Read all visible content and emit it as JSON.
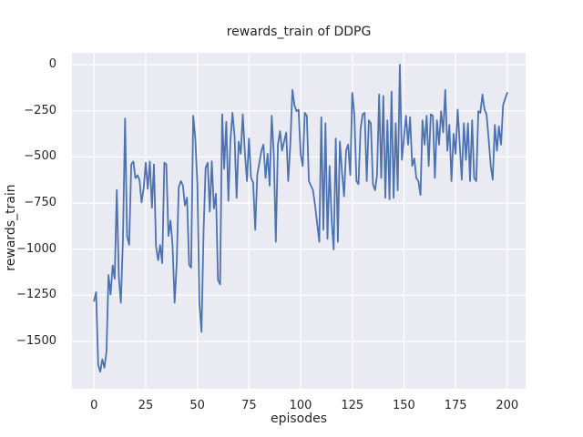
{
  "chart_data": {
    "type": "line",
    "title": "rewards_train of DDPG",
    "xlabel": "episodes",
    "ylabel": "rewards_train",
    "legend": "none",
    "grid": true,
    "plot_bg_color": "#EAEAF2",
    "grid_color": "#FFFFFF",
    "line_color": "#4C72B0",
    "text_color": "#262626",
    "xlim": [
      -10.7,
      208.9
    ],
    "ylim": [
      -1756,
      64
    ],
    "x_ticks": [
      0,
      25,
      50,
      75,
      100,
      125,
      150,
      175,
      200
    ],
    "x_tick_labels": [
      "0",
      "25",
      "50",
      "75",
      "100",
      "125",
      "150",
      "175",
      "200"
    ],
    "y_ticks": [
      0,
      -250,
      -500,
      -750,
      -1000,
      -1250,
      -1500
    ],
    "y_tick_labels": [
      "0",
      "−250",
      "−500",
      "−750",
      "−1000",
      "−1250",
      "−1500"
    ],
    "x_is_episode_index": true,
    "series": [
      {
        "name": "rewards_train",
        "values": [
          -1280,
          -1232,
          -1628,
          -1664,
          -1596,
          -1642,
          -1556,
          -1140,
          -1246,
          -1088,
          -1160,
          -680,
          -1152,
          -1290,
          -940,
          -292,
          -930,
          -976,
          -541,
          -525,
          -615,
          -599,
          -626,
          -747,
          -672,
          -532,
          -673,
          -525,
          -775,
          -541,
          -985,
          -1060,
          -977,
          -1076,
          -532,
          -540,
          -928,
          -845,
          -977,
          -1290,
          -1076,
          -664,
          -631,
          -655,
          -763,
          -720,
          -1084,
          -1100,
          -277,
          -400,
          -650,
          -1290,
          -1448,
          -900,
          -560,
          -532,
          -796,
          -524,
          -780,
          -700,
          -1166,
          -1191,
          -269,
          -565,
          -310,
          -738,
          -417,
          -261,
          -384,
          -722,
          -417,
          -483,
          -269,
          -475,
          -631,
          -400,
          -614,
          -639,
          -895,
          -598,
          -532,
          -466,
          -433,
          -614,
          -483,
          -656,
          -277,
          -491,
          -960,
          -433,
          -360,
          -466,
          -417,
          -368,
          -631,
          -433,
          -137,
          -219,
          -252,
          -244,
          -483,
          -549,
          -261,
          -277,
          -631,
          -656,
          -681,
          -763,
          -862,
          -960,
          -285,
          -895,
          -318,
          -944,
          -549,
          -845,
          -1002,
          -400,
          -960,
          -417,
          -578,
          -714,
          -466,
          -433,
          -598,
          -153,
          -269,
          -631,
          -647,
          -350,
          -269,
          -261,
          -631,
          -302,
          -318,
          -647,
          -681,
          -598,
          -161,
          -614,
          -170,
          -722,
          -302,
          -730,
          -145,
          -722,
          -318,
          -681,
          0,
          -516,
          -400,
          -277,
          -433,
          -285,
          -549,
          -508,
          -614,
          -631,
          -706,
          -302,
          -433,
          -277,
          -549,
          -269,
          -277,
          -614,
          -302,
          -433,
          -252,
          -367,
          -137,
          -466,
          -326,
          -631,
          -375,
          -483,
          -244,
          -430,
          -623,
          -318,
          -516,
          -318,
          -631,
          -302,
          -614,
          -631,
          -252,
          -261,
          -162,
          -244,
          -269,
          -400,
          -549,
          -623,
          -326,
          -466,
          -335,
          -433,
          -219,
          -186,
          -153
        ]
      }
    ]
  }
}
